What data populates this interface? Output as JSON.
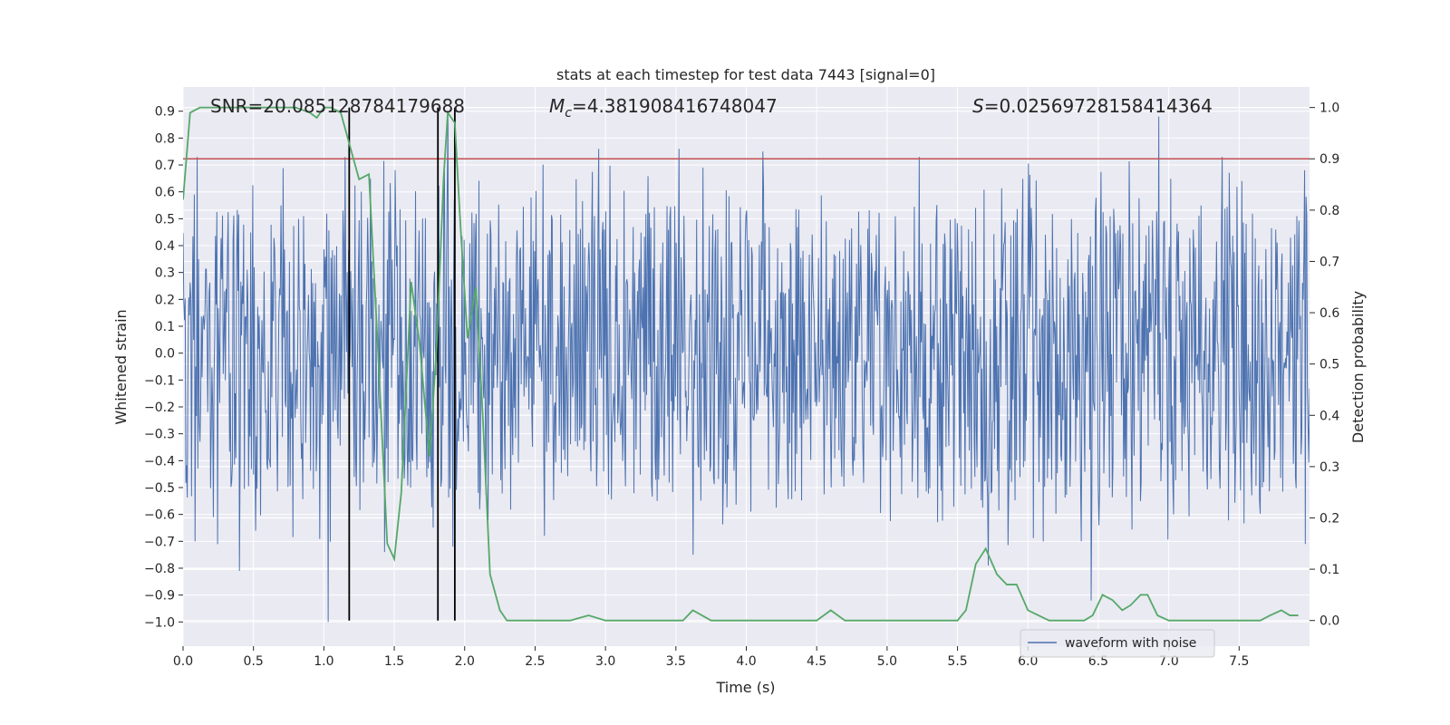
{
  "chart_data": {
    "type": "line",
    "title": "stats at each timestep for test data 7443 [signal=0]",
    "xlabel": "Time (s)",
    "ylabel_left": "Whitened strain",
    "ylabel_right": "Detection probability",
    "xlim": [
      0.0,
      8.0
    ],
    "ylim_left": [
      -1.09,
      0.99
    ],
    "ylim_right": [
      -0.05,
      1.04
    ],
    "x_ticks": [
      0.0,
      0.5,
      1.0,
      1.5,
      2.0,
      2.5,
      3.0,
      3.5,
      4.0,
      4.5,
      5.0,
      5.5,
      6.0,
      6.5,
      7.0,
      7.5
    ],
    "x_tick_labels": [
      "0.0",
      "0.5",
      "1.0",
      "1.5",
      "2.0",
      "2.5",
      "3.0",
      "3.5",
      "4.0",
      "4.5",
      "5.0",
      "5.5",
      "6.0",
      "6.5",
      "7.0",
      "7.5"
    ],
    "y_left_ticks": [
      0.9,
      0.8,
      0.7,
      0.6,
      0.5,
      0.4,
      0.3,
      0.2,
      0.1,
      0.0,
      -0.1,
      -0.2,
      -0.3,
      -0.4,
      -0.5,
      -0.6,
      -0.7,
      -0.8,
      -0.9,
      -1.0
    ],
    "y_left_tick_labels": [
      "0.9",
      "0.8",
      "0.7",
      "0.6",
      "0.5",
      "0.4",
      "0.3",
      "0.2",
      "0.1",
      "0.0",
      "−0.1",
      "−0.2",
      "−0.3",
      "−0.4",
      "−0.5",
      "−0.6",
      "−0.7",
      "−0.8",
      "−0.9",
      "−1.0"
    ],
    "y_right_ticks": [
      1.0,
      0.9,
      0.8,
      0.7,
      0.6,
      0.5,
      0.4,
      0.3,
      0.2,
      0.1,
      0.0
    ],
    "y_right_tick_labels": [
      "1.0",
      "0.9",
      "0.8",
      "0.7",
      "0.6",
      "0.5",
      "0.4",
      "0.3",
      "0.2",
      "0.1",
      "0.0"
    ],
    "threshold": 0.9,
    "detection_times": [
      1.18,
      1.81,
      1.93
    ],
    "annotations": {
      "snr": "SNR=20.085128784179688",
      "mc_symbol": "M",
      "mc_sub": "c",
      "mc_value": "=4.381908416748047",
      "s_symbol": "S",
      "s_value": "=0.025697281584143​64"
    },
    "legend": {
      "label": "waveform with noise",
      "position": "lower-right"
    },
    "waveform": {
      "name": "waveform with noise",
      "sample_count": 1600,
      "core_amplitude": 0.28,
      "typical_peak_range": [
        0.35,
        0.72
      ],
      "notable_peaks": [
        {
          "x": 0.08,
          "y": 0.59
        },
        {
          "x": 0.1,
          "y": 0.73
        },
        {
          "x": 0.4,
          "y": -0.81
        },
        {
          "x": 1.03,
          "y": -1.0
        },
        {
          "x": 1.15,
          "y": 0.73
        },
        {
          "x": 1.43,
          "y": -0.74
        },
        {
          "x": 1.88,
          "y": 0.88
        },
        {
          "x": 2.95,
          "y": 0.76
        },
        {
          "x": 3.52,
          "y": 0.76
        },
        {
          "x": 3.62,
          "y": -0.75
        },
        {
          "x": 4.12,
          "y": 0.75
        },
        {
          "x": 5.23,
          "y": 0.73
        },
        {
          "x": 5.72,
          "y": -0.79
        },
        {
          "x": 6.45,
          "y": -0.92
        },
        {
          "x": 6.93,
          "y": 0.88
        },
        {
          "x": 7.38,
          "y": 0.73
        },
        {
          "x": 7.97,
          "y": -0.71
        }
      ]
    },
    "probability": {
      "name": "detection probability",
      "x": [
        0.0,
        0.05,
        0.12,
        0.2,
        0.3,
        0.4,
        0.5,
        0.6,
        0.7,
        0.8,
        0.9,
        0.95,
        1.0,
        1.05,
        1.12,
        1.19,
        1.25,
        1.32,
        1.38,
        1.45,
        1.5,
        1.55,
        1.62,
        1.68,
        1.75,
        1.8,
        1.85,
        1.88,
        1.93,
        1.97,
        2.02,
        2.08,
        2.13,
        2.18,
        2.25,
        2.3,
        2.45,
        2.6,
        2.75,
        2.88,
        3.0,
        3.15,
        3.3,
        3.45,
        3.55,
        3.62,
        3.75,
        3.9,
        4.1,
        4.3,
        4.5,
        4.6,
        4.7,
        4.9,
        5.1,
        5.3,
        5.5,
        5.56,
        5.63,
        5.7,
        5.78,
        5.85,
        5.92,
        6.0,
        6.15,
        6.3,
        6.4,
        6.46,
        6.53,
        6.6,
        6.67,
        6.73,
        6.8,
        6.85,
        6.92,
        7.0,
        7.2,
        7.4,
        7.55,
        7.65,
        7.72,
        7.8,
        7.86,
        7.92
      ],
      "y": [
        0.82,
        0.99,
        1.0,
        1.0,
        1.0,
        1.0,
        1.0,
        1.0,
        1.0,
        1.0,
        0.99,
        0.98,
        1.0,
        1.0,
        0.99,
        0.92,
        0.86,
        0.87,
        0.55,
        0.15,
        0.12,
        0.25,
        0.66,
        0.54,
        0.32,
        0.53,
        0.86,
        0.99,
        0.97,
        0.77,
        0.55,
        0.65,
        0.39,
        0.09,
        0.02,
        0.0,
        0.0,
        0.0,
        0.0,
        0.01,
        0.0,
        0.0,
        0.0,
        0.0,
        0.0,
        0.02,
        0.0,
        0.0,
        0.0,
        0.0,
        0.0,
        0.02,
        0.0,
        0.0,
        0.0,
        0.0,
        0.0,
        0.02,
        0.11,
        0.14,
        0.09,
        0.07,
        0.07,
        0.02,
        0.0,
        0.0,
        0.0,
        0.01,
        0.05,
        0.04,
        0.02,
        0.03,
        0.05,
        0.05,
        0.01,
        0.0,
        0.0,
        0.0,
        0.0,
        0.0,
        0.01,
        0.02,
        0.01,
        0.01
      ]
    },
    "colors": {
      "background": "#eaeaf2",
      "grid": "#ffffff",
      "waveform": "#4c72b0",
      "probability": "#55a868",
      "threshold": "#c44e52",
      "detections": "#000000",
      "text": "#262626"
    }
  }
}
